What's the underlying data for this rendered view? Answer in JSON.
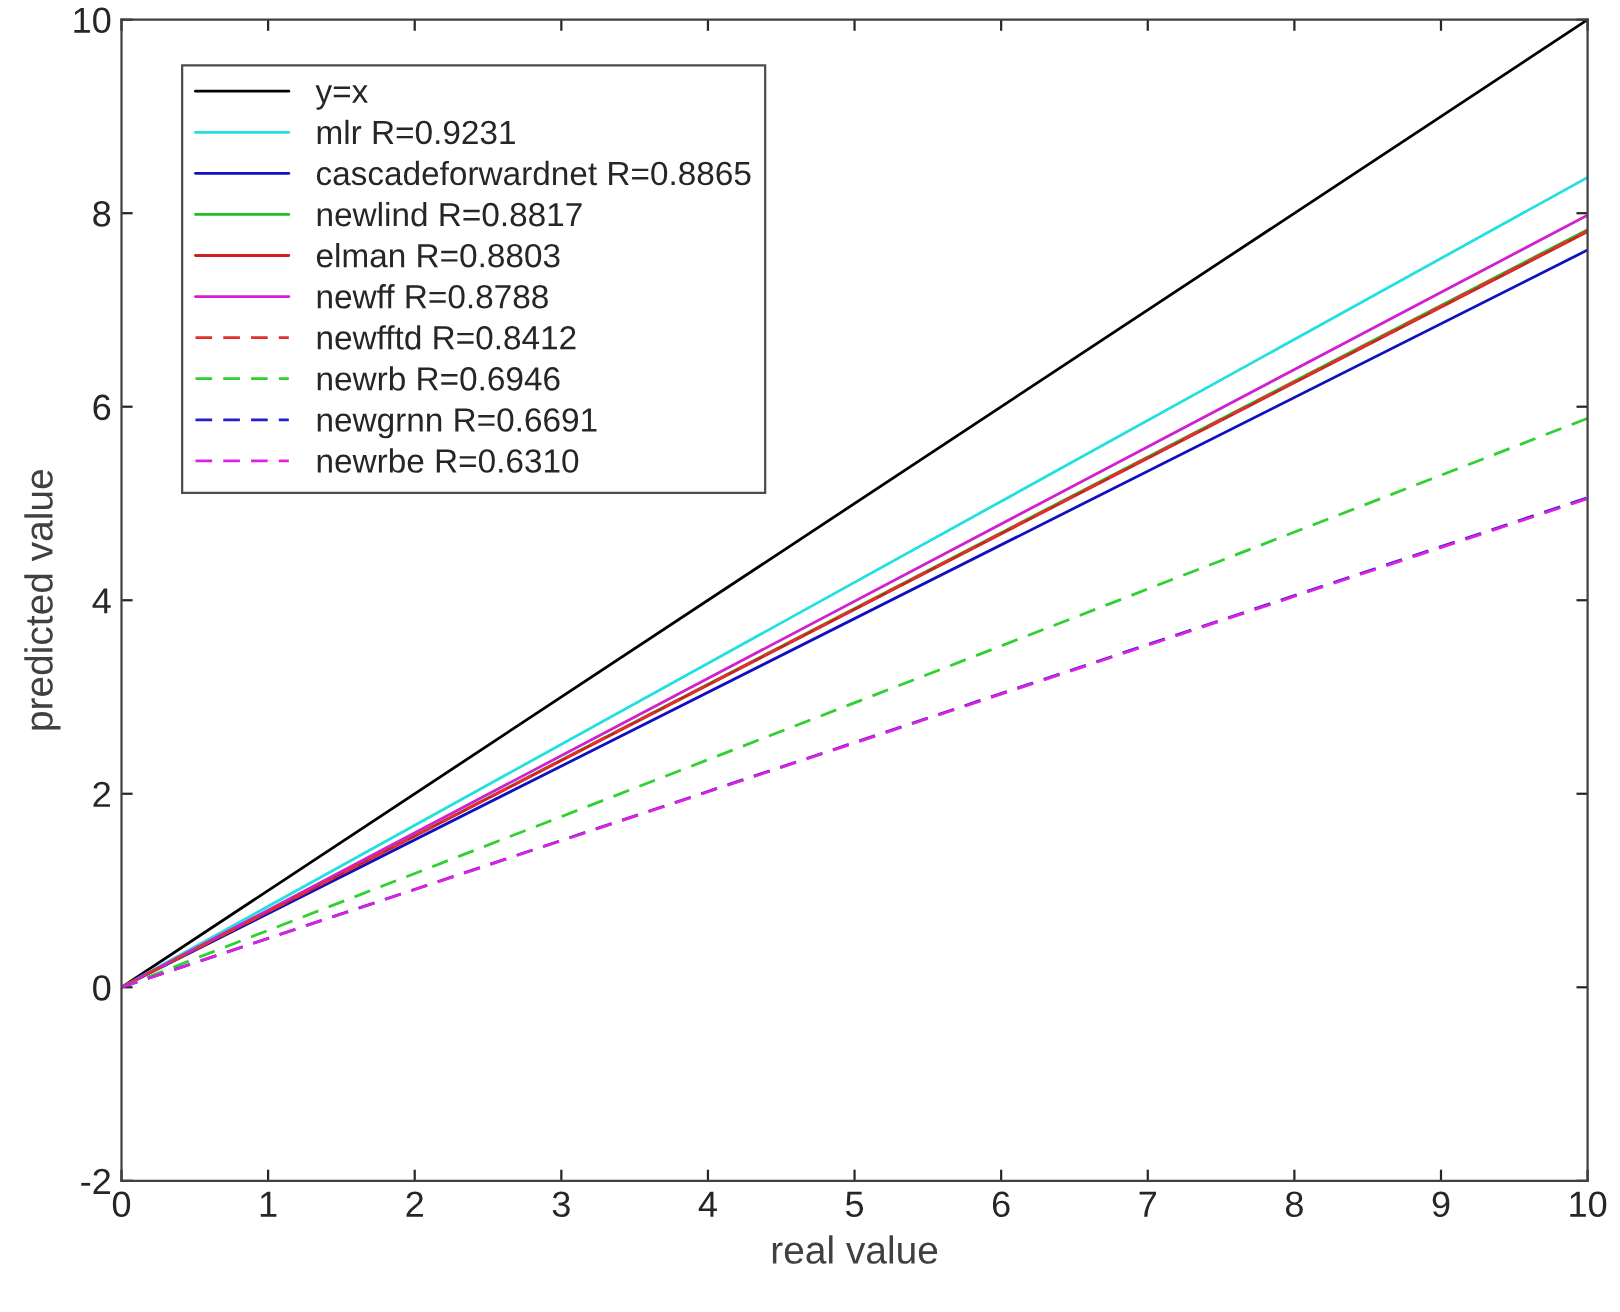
{
  "chart_data": {
    "type": "line",
    "xlabel": "real value",
    "ylabel": "predicted value",
    "xlim": [
      0,
      10
    ],
    "ylim": [
      -2,
      10
    ],
    "xticks": [
      0,
      1,
      2,
      3,
      4,
      5,
      6,
      7,
      8,
      9,
      10
    ],
    "yticks": [
      -2,
      0,
      2,
      4,
      6,
      8,
      10
    ],
    "x": [
      0,
      10
    ],
    "legend": "top left",
    "grid": false,
    "marker": "none",
    "series": [
      {
        "name": "y=x",
        "color": "#000000",
        "values": [
          0,
          10
        ],
        "line_style": "solid"
      },
      {
        "name": "mlr R=0.9231",
        "color": "#22e0e0",
        "values": [
          0,
          8.37
        ],
        "line_style": "solid"
      },
      {
        "name": "cascadeforwardnet R=0.8865",
        "color": "#1010c0",
        "values": [
          0,
          7.62
        ],
        "line_style": "solid"
      },
      {
        "name": "newlind R=0.8817",
        "color": "#20c020",
        "values": [
          0,
          7.83
        ],
        "line_style": "solid"
      },
      {
        "name": "elman R=0.8803",
        "color": "#d02020",
        "values": [
          0,
          7.81
        ],
        "line_style": "solid"
      },
      {
        "name": "newff R=0.8788",
        "color": "#d020d0",
        "values": [
          0,
          7.98
        ],
        "line_style": "solid"
      },
      {
        "name": "newfftd R=0.8412",
        "color": "#e03030",
        "values": [
          0,
          7.82
        ],
        "line_style": "dashed"
      },
      {
        "name": "newrb R=0.6946",
        "color": "#30d030",
        "values": [
          0,
          5.88
        ],
        "line_style": "dashed"
      },
      {
        "name": "newgrnn R=0.6691",
        "color": "#2020d0",
        "values": [
          0,
          5.06
        ],
        "line_style": "dashed"
      },
      {
        "name": "newrbe R=0.6310",
        "color": "#e020e0",
        "values": [
          0,
          5.05
        ],
        "line_style": "dashed"
      }
    ]
  }
}
